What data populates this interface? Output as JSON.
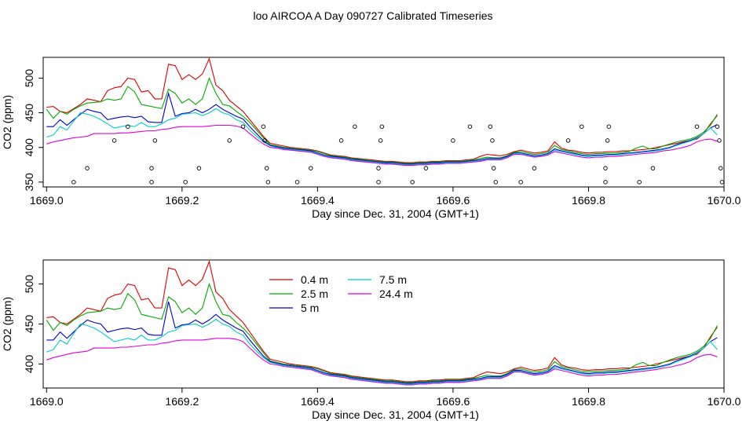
{
  "title": "loo AIRCOA A  Day 090727  Calibrated Timeseries",
  "chart_data": [
    {
      "type": "line",
      "xlabel": "Day since Dec. 31, 2004 (GMT+1)",
      "ylabel": "CO2 (ppm)",
      "xlim": [
        1668.995,
        1670.0
      ],
      "ylim": [
        343,
        530
      ],
      "xticks": [
        "1669.0",
        "1669.2",
        "1669.4",
        "1669.6",
        "1669.8",
        "1670.0"
      ],
      "yticks": [
        "350",
        "400",
        "450",
        "500"
      ],
      "ytick_values": [
        350,
        400,
        450,
        500
      ],
      "x": [
        1669.0,
        1669.01,
        1669.02,
        1669.03,
        1669.04,
        1669.05,
        1669.06,
        1669.07,
        1669.08,
        1669.09,
        1669.1,
        1669.11,
        1669.12,
        1669.13,
        1669.14,
        1669.15,
        1669.16,
        1669.17,
        1669.18,
        1669.19,
        1669.2,
        1669.21,
        1669.22,
        1669.23,
        1669.24,
        1669.25,
        1669.26,
        1669.27,
        1669.28,
        1669.29,
        1669.3,
        1669.31,
        1669.32,
        1669.33,
        1669.34,
        1669.35,
        1669.36,
        1669.37,
        1669.38,
        1669.39,
        1669.4,
        1669.41,
        1669.42,
        1669.43,
        1669.44,
        1669.45,
        1669.46,
        1669.47,
        1669.48,
        1669.49,
        1669.5,
        1669.51,
        1669.52,
        1669.53,
        1669.54,
        1669.55,
        1669.56,
        1669.57,
        1669.58,
        1669.59,
        1669.6,
        1669.61,
        1669.62,
        1669.63,
        1669.64,
        1669.65,
        1669.66,
        1669.67,
        1669.68,
        1669.69,
        1669.7,
        1669.71,
        1669.72,
        1669.73,
        1669.74,
        1669.75,
        1669.76,
        1669.77,
        1669.78,
        1669.79,
        1669.8,
        1669.81,
        1669.82,
        1669.83,
        1669.84,
        1669.85,
        1669.86,
        1669.87,
        1669.88,
        1669.89,
        1669.9,
        1669.91,
        1669.92,
        1669.93,
        1669.94,
        1669.95,
        1669.96,
        1669.97,
        1669.98,
        1669.99
      ],
      "series": [
        {
          "color": "#dd0000",
          "values": [
            458,
            459,
            452,
            450,
            456,
            462,
            470,
            468,
            466,
            482,
            486,
            488,
            500,
            498,
            480,
            482,
            470,
            470,
            520,
            518,
            498,
            505,
            498,
            506,
            528,
            490,
            482,
            468,
            460,
            452,
            440,
            428,
            416,
            406,
            404,
            402,
            400,
            399,
            398,
            397,
            395,
            392,
            389,
            388,
            387,
            385,
            384,
            383,
            382,
            381,
            380,
            380,
            379,
            378,
            378,
            379,
            379,
            380,
            380,
            381,
            381,
            381,
            382,
            383,
            387,
            390,
            389,
            388,
            390,
            394,
            396,
            394,
            392,
            393,
            395,
            408,
            399,
            396,
            395,
            393,
            392,
            393,
            393,
            394,
            394,
            395,
            395,
            396,
            397,
            398,
            400,
            402,
            404,
            406,
            408,
            410,
            412,
            420,
            434,
            446
          ]
        },
        {
          "color": "#00aa00",
          "values": [
            455,
            442,
            452,
            448,
            455,
            460,
            464,
            465,
            466,
            470,
            468,
            470,
            488,
            480,
            462,
            460,
            458,
            456,
            484,
            478,
            464,
            470,
            462,
            470,
            500,
            478,
            462,
            460,
            452,
            445,
            436,
            425,
            414,
            404,
            402,
            400,
            399,
            398,
            397,
            396,
            394,
            391,
            388,
            387,
            386,
            384,
            383,
            382,
            381,
            380,
            379,
            379,
            378,
            377,
            377,
            378,
            378,
            379,
            379,
            380,
            380,
            380,
            381,
            382,
            384,
            386,
            385,
            385,
            388,
            393,
            394,
            392,
            390,
            391,
            393,
            403,
            397,
            395,
            393,
            391,
            390,
            391,
            391,
            392,
            392,
            393,
            394,
            399,
            402,
            398,
            398,
            402,
            405,
            408,
            410,
            412,
            416,
            422,
            432,
            448
          ]
        },
        {
          "color": "#0000cc",
          "values": [
            430,
            430,
            440,
            432,
            440,
            448,
            455,
            452,
            450,
            440,
            442,
            444,
            445,
            443,
            445,
            437,
            436,
            436,
            478,
            445,
            449,
            450,
            455,
            450,
            455,
            462,
            455,
            450,
            445,
            441,
            430,
            420,
            410,
            403,
            401,
            399,
            398,
            397,
            396,
            395,
            392,
            389,
            387,
            386,
            385,
            383,
            382,
            381,
            380,
            379,
            378,
            378,
            377,
            376,
            376,
            377,
            377,
            378,
            378,
            379,
            379,
            379,
            380,
            381,
            382,
            384,
            384,
            384,
            387,
            392,
            392,
            390,
            388,
            389,
            391,
            398,
            395,
            393,
            391,
            389,
            388,
            389,
            389,
            390,
            390,
            391,
            392,
            393,
            394,
            395,
            396,
            398,
            400,
            404,
            407,
            410,
            414,
            420,
            428,
            433
          ]
        },
        {
          "color": "#00cccc",
          "values": [
            415,
            418,
            430,
            425,
            438,
            450,
            448,
            445,
            440,
            434,
            428,
            430,
            432,
            430,
            436,
            430,
            430,
            434,
            440,
            442,
            448,
            449,
            450,
            446,
            450,
            456,
            450,
            447,
            440,
            436,
            425,
            416,
            408,
            402,
            400,
            398,
            397,
            396,
            395,
            394,
            391,
            388,
            386,
            385,
            384,
            382,
            381,
            380,
            379,
            378,
            377,
            377,
            376,
            375,
            375,
            376,
            376,
            377,
            377,
            378,
            378,
            378,
            379,
            380,
            381,
            383,
            383,
            383,
            386,
            391,
            391,
            389,
            387,
            388,
            390,
            396,
            394,
            392,
            390,
            388,
            387,
            388,
            388,
            389,
            389,
            390,
            391,
            392,
            393,
            394,
            395,
            397,
            399,
            403,
            406,
            409,
            413,
            420,
            428,
            418
          ]
        },
        {
          "color": "#dd00dd",
          "values": [
            405,
            408,
            410,
            412,
            414,
            415,
            416,
            420,
            420,
            420,
            420,
            421,
            421,
            422,
            423,
            424,
            424,
            426,
            427,
            429,
            430,
            430,
            430,
            430,
            431,
            432,
            432,
            432,
            431,
            428,
            420,
            412,
            405,
            400,
            399,
            397,
            396,
            395,
            394,
            393,
            390,
            387,
            385,
            384,
            383,
            381,
            380,
            379,
            378,
            377,
            376,
            376,
            375,
            374,
            374,
            375,
            375,
            376,
            376,
            377,
            377,
            377,
            378,
            379,
            380,
            382,
            382,
            382,
            385,
            390,
            390,
            388,
            386,
            387,
            389,
            394,
            392,
            390,
            388,
            386,
            385,
            386,
            386,
            387,
            387,
            388,
            389,
            390,
            391,
            392,
            393,
            395,
            396,
            398,
            400,
            403,
            408,
            411,
            412,
            409
          ]
        }
      ],
      "markers": {
        "x": [
          1669.04,
          1669.06,
          1669.1,
          1669.12,
          1669.155,
          1669.155,
          1669.16,
          1669.205,
          1669.225,
          1669.27,
          1669.29,
          1669.32,
          1669.322,
          1669.325,
          1669.327,
          1669.37,
          1669.39,
          1669.435,
          1669.455,
          1669.49,
          1669.49,
          1669.493,
          1669.495,
          1669.54,
          1669.56,
          1669.6,
          1669.625,
          1669.655,
          1669.658,
          1669.66,
          1669.663,
          1669.7,
          1669.72,
          1669.77,
          1669.79,
          1669.825,
          1669.825,
          1669.828,
          1669.83,
          1669.875,
          1669.895,
          1669.96,
          1669.99,
          1669.993,
          1669.995,
          1669.997
        ],
        "y": [
          350,
          370,
          410,
          430,
          350,
          370,
          410,
          350,
          370,
          410,
          430,
          430,
          410,
          370,
          350,
          350,
          370,
          410,
          430,
          350,
          370,
          410,
          430,
          350,
          370,
          410,
          430,
          430,
          410,
          370,
          350,
          350,
          370,
          410,
          430,
          350,
          370,
          410,
          430,
          350,
          370,
          430,
          430,
          410,
          370,
          350
        ]
      }
    },
    {
      "type": "line",
      "xlabel": "Day since Dec. 31, 2004 (GMT+1)",
      "ylabel": "CO2 (ppm)",
      "xlim": [
        1668.995,
        1670.0
      ],
      "ylim": [
        370,
        530
      ],
      "xticks": [
        "1669.0",
        "1669.2",
        "1669.4",
        "1669.6",
        "1669.8",
        "1670.0"
      ],
      "yticks": [
        "400",
        "450",
        "500"
      ],
      "ytick_values": [
        400,
        450,
        500
      ],
      "legend": {
        "placement": "top-center",
        "entries": [
          {
            "label": "0.4 m",
            "color": "#dd0000"
          },
          {
            "label": "2.5 m",
            "color": "#00aa00"
          },
          {
            "label": "5 m",
            "color": "#0000cc"
          },
          {
            "label": "7.5 m",
            "color": "#00cccc"
          },
          {
            "label": "24.4 m",
            "color": "#dd00dd"
          }
        ]
      }
    }
  ]
}
